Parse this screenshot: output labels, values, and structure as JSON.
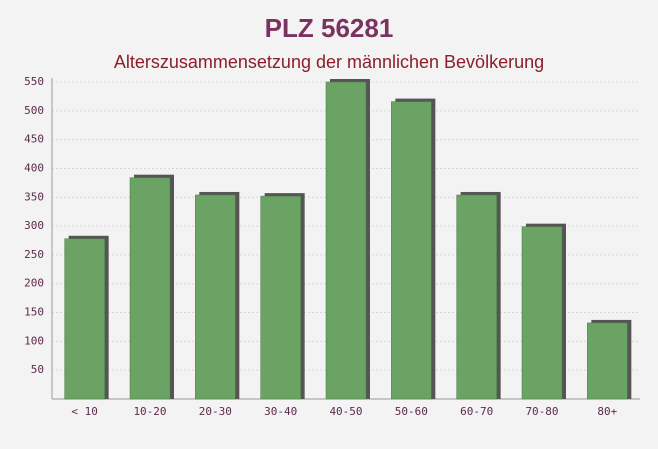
{
  "chart_data": {
    "type": "bar",
    "title": "PLZ 56281",
    "subtitle": "Alterszusammensetzung der männlichen Bevölkerung",
    "categories": [
      "< 10",
      "10-20",
      "20-30",
      "30-40",
      "40-50",
      "50-60",
      "60-70",
      "70-80",
      "80+"
    ],
    "values": [
      278,
      384,
      354,
      352,
      550,
      516,
      354,
      299,
      132
    ],
    "color": "#6aa363",
    "ylim": [
      0,
      550
    ],
    "yticks": [
      50,
      100,
      150,
      200,
      250,
      300,
      350,
      400,
      450,
      500,
      550
    ],
    "grid": true
  }
}
